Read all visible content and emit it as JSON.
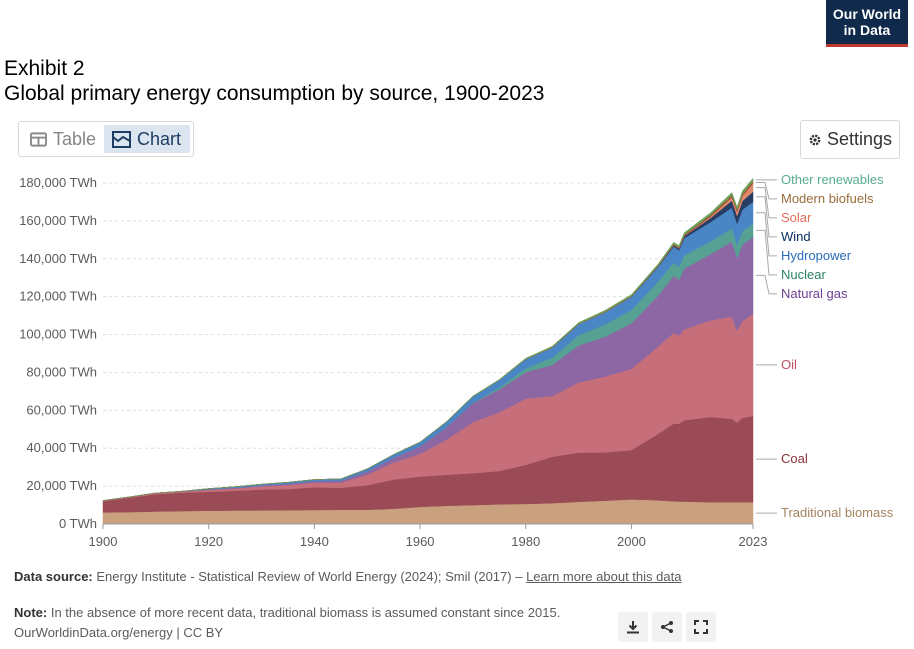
{
  "logo": {
    "line1": "Our World",
    "line2": "in Data"
  },
  "header": {
    "exhibit": "Exhibit 2",
    "title": "Global primary energy consumption by source, 1900-2023"
  },
  "tabs": {
    "table": "Table",
    "chart": "Chart"
  },
  "settings_label": "Settings",
  "footer": {
    "source_label": "Data source:",
    "source_text": "Energy Institute - Statistical Review of World Energy (2024); Smil (2017) –",
    "learn_more": "Learn more about this data",
    "note_label": "Note:",
    "note_text": "In the absence of more recent data, traditional biomass is assumed constant since 2015.",
    "url": "OurWorldinData.org/energy | CC BY"
  },
  "chart_data": {
    "type": "area",
    "stacked": true,
    "x": [
      1900,
      1905,
      1910,
      1915,
      1920,
      1925,
      1930,
      1935,
      1940,
      1945,
      1950,
      1955,
      1960,
      1965,
      1970,
      1975,
      1980,
      1985,
      1990,
      1995,
      2000,
      2005,
      2008,
      2009,
      2010,
      2015,
      2019,
      2020,
      2021,
      2023
    ],
    "xticks": [
      "1900",
      "1920",
      "1940",
      "1960",
      "1980",
      "2000",
      "2023"
    ],
    "yticks": [
      "0 TWh",
      "20,000 TWh",
      "40,000 TWh",
      "60,000 TWh",
      "80,000 TWh",
      "100,000 TWh",
      "120,000 TWh",
      "140,000 TWh",
      "160,000 TWh",
      "180,000 TWh"
    ],
    "ylim": [
      0,
      180000
    ],
    "grid": true,
    "series": [
      {
        "name": "Traditional biomass",
        "color": "#c9a17f",
        "label_color": "#a4825f",
        "values": [
          6100,
          6300,
          6600,
          6800,
          7000,
          7100,
          7200,
          7300,
          7400,
          7500,
          7500,
          8000,
          9000,
          9600,
          10000,
          10400,
          10600,
          11000,
          11700,
          12300,
          13000,
          12500,
          12000,
          11900,
          11800,
          11500,
          11500,
          11500,
          11500,
          11500
        ]
      },
      {
        "name": "Coal",
        "color": "#9b4b55",
        "label_color": "#883039",
        "values": [
          6000,
          7600,
          9200,
          9800,
          10000,
          10400,
          11000,
          11200,
          12000,
          11600,
          13000,
          15500,
          16000,
          16400,
          16800,
          17600,
          20600,
          24500,
          26000,
          25500,
          26000,
          35000,
          41000,
          41000,
          43000,
          45000,
          44000,
          42000,
          44500,
          45500
        ]
      },
      {
        "name": "Oil",
        "color": "#c66f7a",
        "label_color": "#c15065",
        "values": [
          200,
          300,
          400,
          500,
          1000,
          1300,
          1700,
          2100,
          2500,
          2800,
          5500,
          9000,
          12000,
          18500,
          27000,
          31000,
          35000,
          32000,
          37000,
          40000,
          43000,
          46000,
          48000,
          46500,
          48000,
          51000,
          54000,
          48500,
          51000,
          54000
        ]
      },
      {
        "name": "Natural gas",
        "color": "#8c67a4",
        "label_color": "#6d3e91",
        "values": [
          100,
          100,
          150,
          200,
          300,
          400,
          500,
          700,
          800,
          1000,
          1800,
          2500,
          4000,
          6500,
          10000,
          12000,
          14000,
          16500,
          19500,
          21000,
          24000,
          27000,
          30000,
          29500,
          32000,
          35000,
          39500,
          38500,
          40500,
          40500
        ]
      },
      {
        "name": "Nuclear",
        "color": "#56a194",
        "label_color": "#2c8465",
        "values": [
          0,
          0,
          0,
          0,
          0,
          0,
          0,
          0,
          0,
          0,
          0,
          0,
          0,
          100,
          200,
          1000,
          2000,
          3800,
          5500,
          6500,
          7000,
          7300,
          7000,
          6900,
          7000,
          6800,
          7000,
          6700,
          7000,
          7000
        ]
      },
      {
        "name": "Hydropower",
        "color": "#4a86c5",
        "label_color": "#286bbb",
        "values": [
          0,
          0,
          0,
          0,
          400,
          500,
          600,
          700,
          800,
          900,
          1300,
          1700,
          2200,
          2800,
          3300,
          4000,
          4800,
          5300,
          5800,
          6500,
          7000,
          7800,
          8500,
          8700,
          9100,
          10100,
          11000,
          11300,
          11400,
          11500
        ]
      },
      {
        "name": "Wind",
        "color": "#283d63",
        "label_color": "#0a2d66",
        "values": [
          0,
          0,
          0,
          0,
          0,
          0,
          0,
          0,
          0,
          0,
          0,
          0,
          0,
          0,
          0,
          0,
          0,
          0,
          0,
          0,
          100,
          300,
          600,
          800,
          1000,
          2200,
          3700,
          4200,
          4600,
          5400
        ]
      },
      {
        "name": "Solar",
        "color": "#e08a6c",
        "label_color": "#e56e5a",
        "values": [
          0,
          0,
          0,
          0,
          0,
          0,
          0,
          0,
          0,
          0,
          0,
          0,
          0,
          0,
          0,
          0,
          0,
          0,
          0,
          0,
          0,
          0,
          50,
          60,
          100,
          700,
          1800,
          2200,
          2700,
          4300
        ]
      },
      {
        "name": "Modern biofuels",
        "color": "#a24e38",
        "label_color": "#996d39",
        "values": [
          0,
          0,
          0,
          0,
          0,
          0,
          0,
          0,
          0,
          0,
          0,
          0,
          0,
          0,
          0,
          0,
          100,
          200,
          200,
          250,
          250,
          350,
          550,
          600,
          650,
          800,
          1000,
          950,
          1000,
          1100
        ]
      },
      {
        "name": "Other renewables",
        "color": "#6ca158",
        "label_color": "#58ac8c",
        "values": [
          0,
          0,
          0,
          0,
          0,
          0,
          0,
          0,
          0,
          0,
          100,
          100,
          150,
          200,
          250,
          300,
          400,
          500,
          600,
          700,
          800,
          900,
          1000,
          1000,
          1100,
          1300,
          1500,
          1550,
          1600,
          1700
        ]
      }
    ]
  }
}
